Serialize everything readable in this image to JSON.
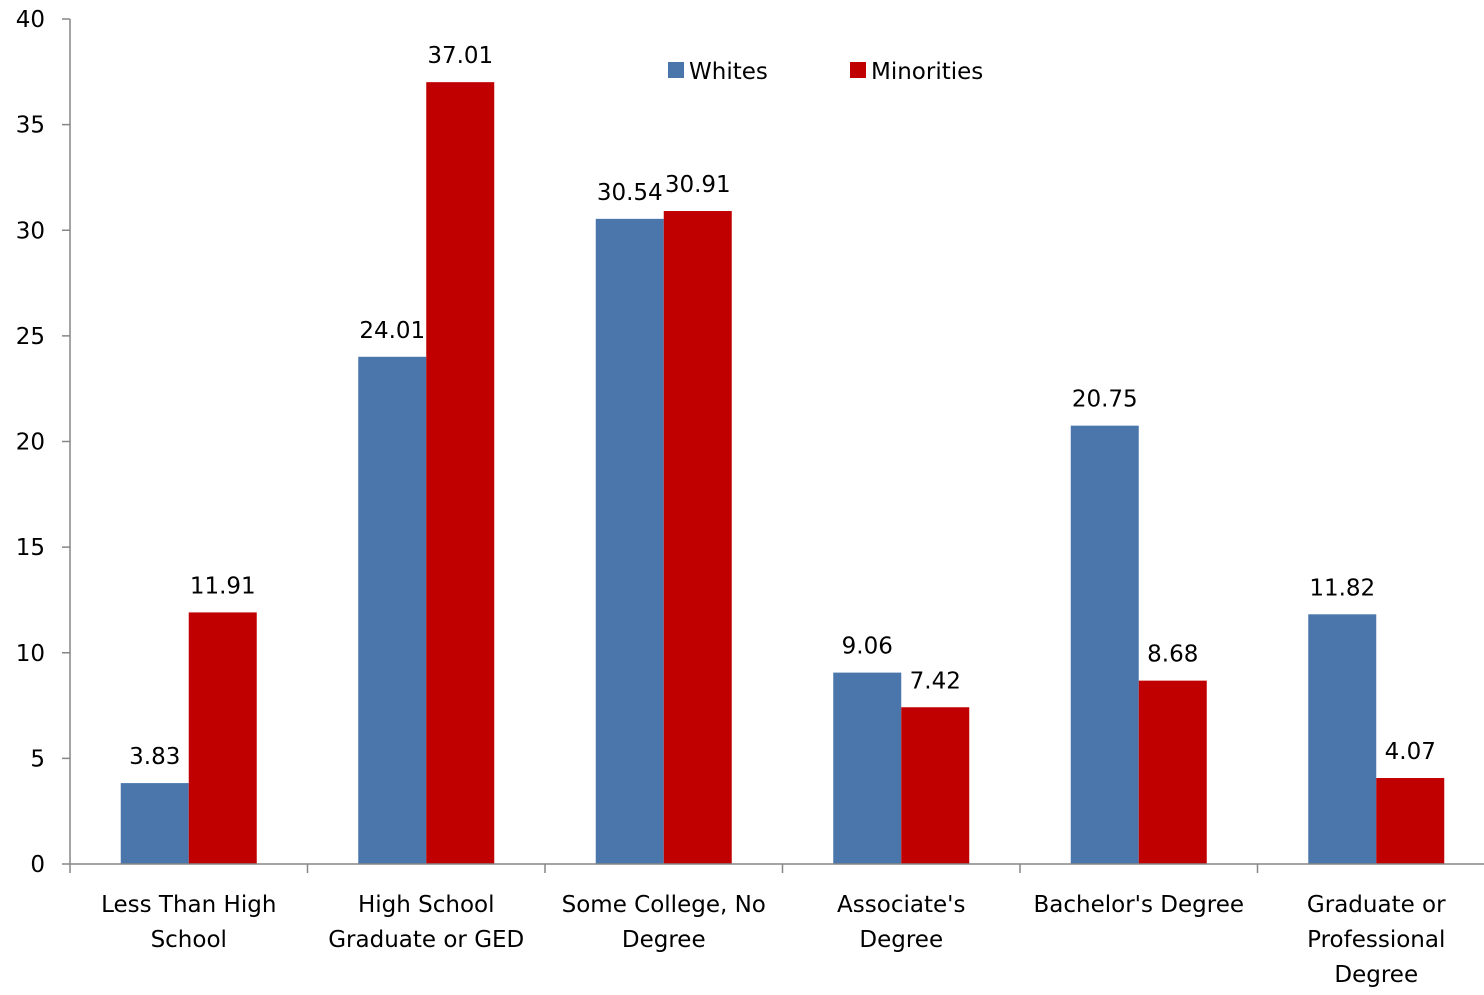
{
  "chart_data": {
    "type": "bar",
    "categories": [
      [
        "Less Than High",
        "School"
      ],
      [
        "High School",
        "Graduate or GED"
      ],
      [
        "Some College, No",
        "Degree"
      ],
      [
        "Associate's",
        "Degree"
      ],
      [
        "Bachelor's Degree"
      ],
      [
        "Graduate or",
        "Professional",
        "Degree"
      ]
    ],
    "series": [
      {
        "name": "Whites",
        "color": "#4A76AC",
        "values": [
          3.83,
          24.01,
          30.54,
          9.06,
          20.75,
          11.82
        ]
      },
      {
        "name": "Minorities",
        "color": "#C00000",
        "values": [
          11.91,
          37.01,
          30.91,
          7.42,
          8.68,
          4.07
        ]
      }
    ],
    "value_labels": {
      "Whites": [
        "3.83",
        "24.01",
        "30.54",
        "9.06",
        "20.75",
        "11.82"
      ],
      "Minorities": [
        "11.91",
        "37.01",
        "30.91",
        "7.42",
        "8.68",
        "4.07"
      ]
    },
    "ylim": [
      0,
      40
    ],
    "yticks": [
      "0",
      "5",
      "10",
      "15",
      "20",
      "25",
      "30",
      "35",
      "40"
    ],
    "grid": false,
    "legend_position": "top-center",
    "title": "",
    "xlabel": "",
    "ylabel": ""
  }
}
